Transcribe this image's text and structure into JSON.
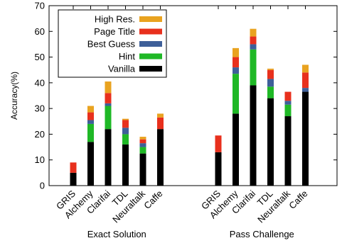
{
  "chart_data": {
    "type": "bar",
    "stacked": true,
    "ylabel": "Accuracy(%)",
    "ylim": [
      0,
      70
    ],
    "yticks": [
      0,
      10,
      20,
      30,
      40,
      50,
      60,
      70
    ],
    "grid": false,
    "legend_position": "top-left",
    "groups": [
      {
        "label": "Exact Solution",
        "categories": [
          "GRIS",
          "Alchemy",
          "Clarifai",
          "TDL",
          "Neuraltalk",
          "Caffe"
        ]
      },
      {
        "label": "Pass Challenge",
        "categories": [
          "GRIS",
          "Alchemy",
          "Clarifai",
          "TDL",
          "Neuraltalk",
          "Caffe"
        ]
      }
    ],
    "series": [
      {
        "name": "Vanilla",
        "color": "#000000",
        "values": [
          5,
          17,
          22,
          16,
          12.5,
          22,
          13,
          28,
          39,
          34,
          27,
          36.5
        ]
      },
      {
        "name": "Hint",
        "color": "#1fb826",
        "values": [
          0,
          7,
          9,
          4,
          2.5,
          0,
          0,
          15.5,
          14,
          4.5,
          4.5,
          0
        ]
      },
      {
        "name": "Best Guess",
        "color": "#3e5f99",
        "values": [
          0,
          1.5,
          1,
          2.5,
          1.5,
          0,
          0,
          2.5,
          2,
          3,
          1.5,
          1.5
        ]
      },
      {
        "name": "Page Title",
        "color": "#e8301d",
        "values": [
          4,
          3,
          4,
          3,
          1.5,
          4.5,
          6.5,
          4,
          3,
          3.5,
          3.5,
          6
        ]
      },
      {
        "name": "High Res.",
        "color": "#e9a320",
        "values": [
          0,
          2.5,
          4.5,
          0.5,
          1,
          1.5,
          0,
          3.5,
          3,
          0.5,
          0,
          3
        ]
      }
    ]
  }
}
